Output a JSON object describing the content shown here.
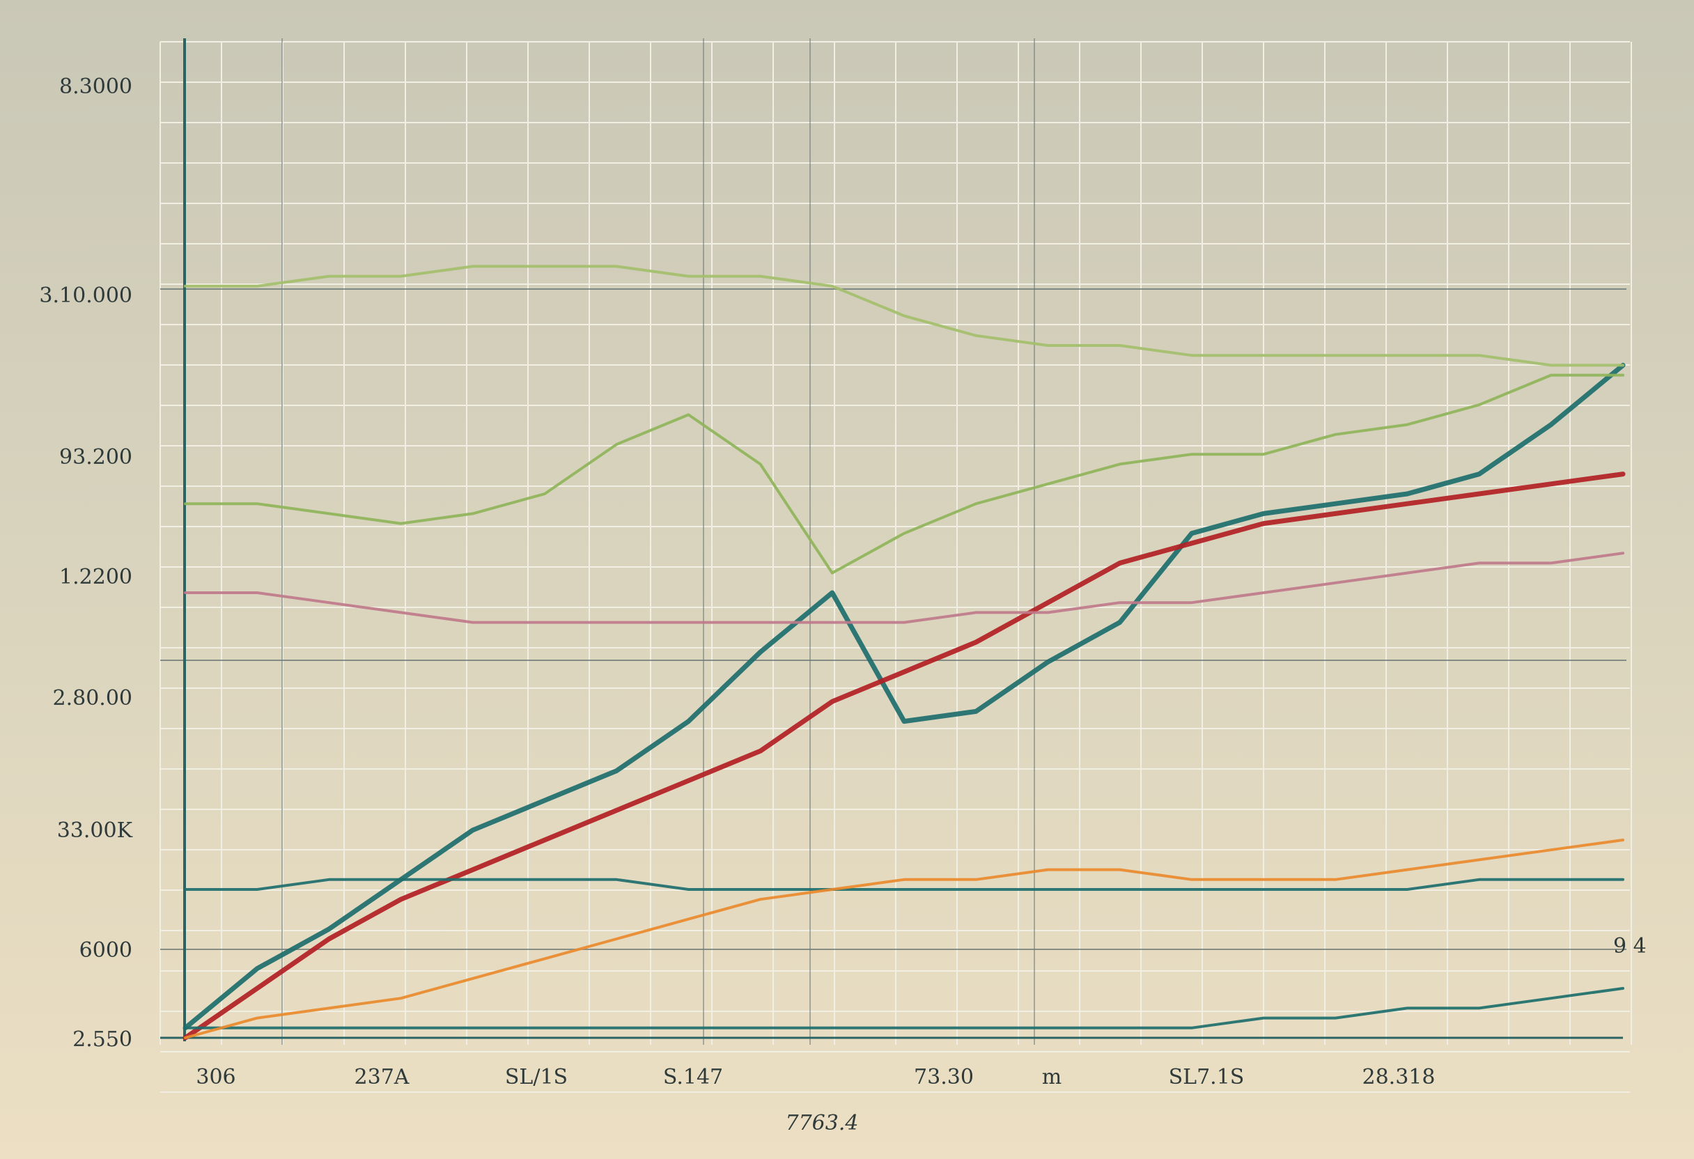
{
  "chart_data": {
    "type": "line",
    "title": "",
    "xlabel": "7763.4",
    "ylabel": "",
    "grid": true,
    "legend": "none",
    "y_ticks": [
      "2.550",
      "6000",
      "33.00K",
      "2.80.00",
      "1.2200",
      "93.200",
      "3.10.000",
      "8.3000"
    ],
    "x_ticks": [
      "306",
      "237A",
      "SL/1S",
      "S.147",
      "73.30",
      "m",
      "SL7.1S",
      "28.318"
    ],
    "right_annotation": "9 4",
    "xlim": [
      0,
      100
    ],
    "ylim": [
      0,
      100
    ],
    "x": [
      0,
      5,
      10,
      15,
      20,
      25,
      30,
      35,
      40,
      45,
      50,
      55,
      60,
      65,
      70,
      75,
      80,
      85,
      90,
      95,
      100
    ],
    "series": [
      {
        "color": "#1d6e6c",
        "values": [
          1,
          7,
          11,
          16,
          21,
          24,
          27,
          32,
          39,
          45,
          32,
          33,
          38,
          42,
          51,
          53,
          54,
          55,
          57,
          62,
          68
        ]
      },
      {
        "color": "#b21f24",
        "values": [
          0,
          5,
          10,
          14,
          17,
          20,
          23,
          26,
          29,
          34,
          37,
          40,
          44,
          48,
          50,
          52,
          53,
          54,
          55,
          56,
          57
        ]
      },
      {
        "color": "#8fb45a",
        "values": [
          54,
          54,
          53,
          52,
          53,
          55,
          60,
          63,
          58,
          47,
          51,
          54,
          56,
          58,
          59,
          59,
          61,
          62,
          64,
          67,
          67
        ]
      },
      {
        "color": "#a3bf6a",
        "values": [
          76,
          76,
          77,
          77,
          78,
          78,
          78,
          77,
          77,
          76,
          73,
          71,
          70,
          70,
          69,
          69,
          69,
          69,
          69,
          68,
          68
        ]
      },
      {
        "color": "#1d6e6c",
        "values": [
          15,
          15,
          16,
          16,
          16,
          16,
          16,
          15,
          15,
          15,
          15,
          15,
          15,
          15,
          15,
          15,
          15,
          15,
          16,
          16,
          16
        ]
      },
      {
        "color": "#c07a8a",
        "values": [
          45,
          45,
          44,
          43,
          42,
          42,
          42,
          42,
          42,
          42,
          42,
          43,
          43,
          44,
          44,
          45,
          46,
          47,
          48,
          48,
          49
        ]
      },
      {
        "color": "#1d6e6c",
        "values": [
          1,
          1,
          1,
          1,
          1,
          1,
          1,
          1,
          1,
          1,
          1,
          1,
          1,
          1,
          1,
          2,
          2,
          3,
          3,
          4,
          5
        ]
      },
      {
        "color": "#e98a2c",
        "values": [
          0,
          2,
          3,
          4,
          6,
          8,
          10,
          12,
          14,
          15,
          16,
          16,
          17,
          17,
          16,
          16,
          16,
          17,
          18,
          19,
          20
        ]
      }
    ]
  }
}
